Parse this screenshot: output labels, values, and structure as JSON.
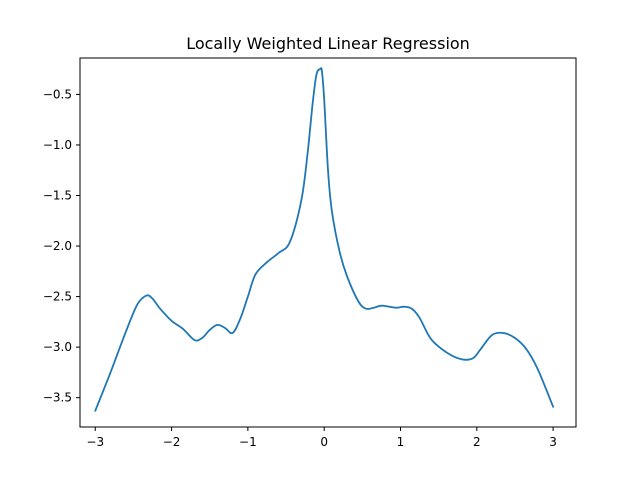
{
  "chart_data": {
    "type": "line",
    "title": "Locally Weighted Linear Regression",
    "xlabel": "",
    "ylabel": "",
    "xlim": [
      -3.2,
      3.3
    ],
    "ylim": [
      -3.79,
      -0.14
    ],
    "xticks": [
      -3,
      -2,
      -1,
      0,
      1,
      2,
      3
    ],
    "xtick_labels": [
      "−3",
      "−2",
      "−1",
      "0",
      "1",
      "2",
      "3"
    ],
    "yticks": [
      -3.5,
      -3.0,
      -2.5,
      -2.0,
      -1.5,
      -1.0,
      -0.5
    ],
    "ytick_labels": [
      "−3.5",
      "−3.0",
      "−2.5",
      "−2.0",
      "−1.5",
      "−1.0",
      "−0.5"
    ],
    "grid": false,
    "series": [
      {
        "color": "#1f77b4",
        "x": [
          -3.0,
          -2.8,
          -2.6,
          -2.45,
          -2.33,
          -2.25,
          -2.15,
          -2.0,
          -1.85,
          -1.7,
          -1.6,
          -1.5,
          -1.4,
          -1.3,
          -1.2,
          -1.1,
          -1.0,
          -0.9,
          -0.75,
          -0.6,
          -0.45,
          -0.3,
          -0.22,
          -0.15,
          -0.1,
          -0.05,
          -0.03,
          0.0,
          0.05,
          0.1,
          0.2,
          0.3,
          0.45,
          0.55,
          0.65,
          0.75,
          0.85,
          0.95,
          1.05,
          1.15,
          1.25,
          1.4,
          1.6,
          1.8,
          1.95,
          2.05,
          2.2,
          2.35,
          2.5,
          2.65,
          2.8,
          3.0
        ],
        "y": [
          -3.63,
          -3.25,
          -2.85,
          -2.58,
          -2.49,
          -2.52,
          -2.62,
          -2.74,
          -2.82,
          -2.93,
          -2.91,
          -2.83,
          -2.78,
          -2.81,
          -2.86,
          -2.72,
          -2.5,
          -2.28,
          -2.16,
          -2.07,
          -1.96,
          -1.55,
          -1.1,
          -0.58,
          -0.3,
          -0.25,
          -0.27,
          -0.55,
          -1.25,
          -1.65,
          -2.05,
          -2.3,
          -2.55,
          -2.62,
          -2.61,
          -2.59,
          -2.6,
          -2.61,
          -2.6,
          -2.62,
          -2.71,
          -2.92,
          -3.05,
          -3.12,
          -3.11,
          -3.02,
          -2.88,
          -2.86,
          -2.91,
          -3.02,
          -3.22,
          -3.59
        ]
      }
    ]
  }
}
